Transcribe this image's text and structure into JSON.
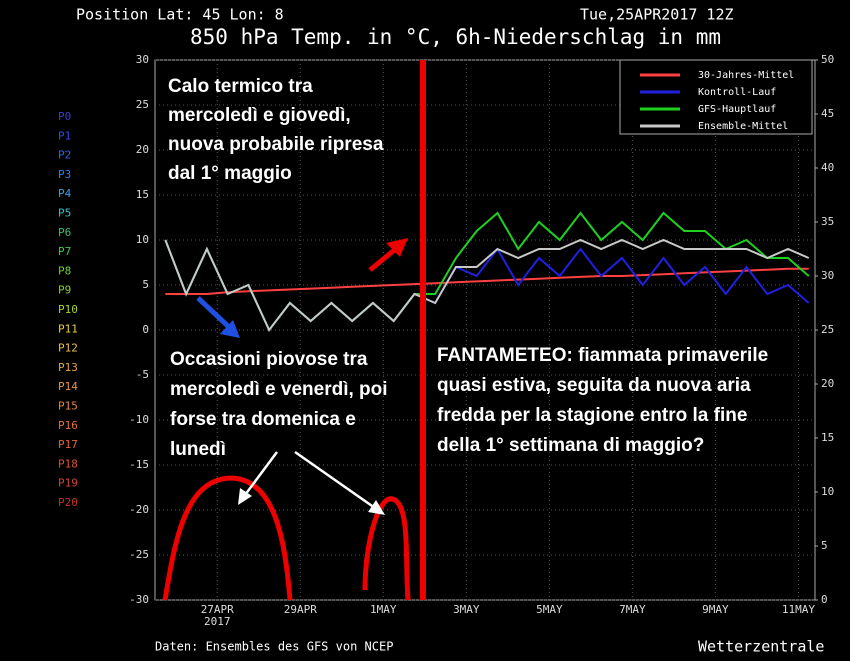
{
  "header": {
    "position": "Position  Lat: 45 Lon: 8",
    "date": "Tue,25APR2017 12Z",
    "footer": "Daten: Ensembles des GFS von NCEP",
    "brand": "Wetterzentrale"
  },
  "members": [
    {
      "name": "P0",
      "color": "#3c3cd0"
    },
    {
      "name": "P1",
      "color": "#2a4ee0"
    },
    {
      "name": "P2",
      "color": "#2a66e6"
    },
    {
      "name": "P3",
      "color": "#2a84e6"
    },
    {
      "name": "P4",
      "color": "#34a2e6"
    },
    {
      "name": "P5",
      "color": "#34c0c8"
    },
    {
      "name": "P6",
      "color": "#34c070"
    },
    {
      "name": "P7",
      "color": "#34d044"
    },
    {
      "name": "P8",
      "color": "#66d034"
    },
    {
      "name": "P9",
      "color": "#88d024"
    },
    {
      "name": "P10",
      "color": "#a8d024"
    },
    {
      "name": "P11",
      "color": "#e6d044"
    },
    {
      "name": "P12",
      "color": "#e6c044"
    },
    {
      "name": "P13",
      "color": "#e6a444"
    },
    {
      "name": "P14",
      "color": "#e69444"
    },
    {
      "name": "P15",
      "color": "#e68444"
    },
    {
      "name": "P16",
      "color": "#e67234"
    },
    {
      "name": "P17",
      "color": "#e66234"
    },
    {
      "name": "P18",
      "color": "#d45234"
    },
    {
      "name": "P19",
      "color": "#d44234"
    },
    {
      "name": "P20",
      "color": "#c43224"
    }
  ],
  "annotations": [
    {
      "lines": [
        "Calo termico tra",
        "mercoledì e giovedì,",
        "nuova probabile ripresa",
        "dal 1° maggio"
      ]
    },
    {
      "lines": [
        "Occasioni piovose tra",
        "mercoledì e venerdì, poi",
        "forse tra domenica e",
        "lunedì"
      ]
    },
    {
      "lines": [
        "FANTAMETEO: fiammata primaverile",
        "quasi estiva, seguita da nuova aria",
        "fredda per la stagione entro la fine",
        "della 1° settimana di maggio?"
      ]
    }
  ],
  "chart_data": {
    "type": "line",
    "title": "850 hPa Temp. in °C, 6h-Niederschlag in mm",
    "x_year_label": "2017",
    "grid": true,
    "x": [
      0.25,
      0.75,
      1.25,
      1.75,
      2.25,
      2.75,
      3.25,
      3.75,
      4.25,
      4.75,
      5.25,
      5.75,
      6.25,
      6.75,
      7.25,
      7.75,
      8.25,
      8.75,
      9.25,
      9.75,
      10.25,
      10.75,
      11.25,
      11.75,
      12.25,
      12.75,
      13.25,
      13.75,
      14.25,
      14.75,
      15.25,
      15.75
    ],
    "xlim": [
      0,
      15.9
    ],
    "xticks": [
      {
        "value": 1.5,
        "label": "27APR"
      },
      {
        "value": 3.5,
        "label": "29APR"
      },
      {
        "value": 5.5,
        "label": "1MAY"
      },
      {
        "value": 7.5,
        "label": "3MAY"
      },
      {
        "value": 9.5,
        "label": "5MAY"
      },
      {
        "value": 11.5,
        "label": "7MAY"
      },
      {
        "value": 13.5,
        "label": "9MAY"
      },
      {
        "value": 15.5,
        "label": "11MAY"
      }
    ],
    "ylim": [
      -30,
      30
    ],
    "yticks": [
      -30,
      -25,
      -20,
      -15,
      -10,
      -5,
      0,
      5,
      10,
      15,
      20,
      25,
      30
    ],
    "y2lim": [
      0,
      50
    ],
    "y2ticks": [
      0,
      5,
      10,
      15,
      20,
      25,
      30,
      35,
      40,
      45,
      50
    ],
    "legend": "top-right",
    "series": [
      {
        "name": "30-Jahres-Mittel",
        "color": "#ff4040",
        "values": [
          4,
          4,
          4,
          4.2,
          4.3,
          4.4,
          4.5,
          4.6,
          4.7,
          4.8,
          4.9,
          5,
          5.1,
          5.2,
          5.3,
          5.4,
          5.5,
          5.6,
          5.7,
          5.8,
          5.9,
          6,
          6,
          6.1,
          6.2,
          6.3,
          6.4,
          6.5,
          6.6,
          6.7,
          6.8,
          6.8
        ]
      },
      {
        "name": "Kontroll-Lauf",
        "color": "#2020e0",
        "values": [
          10,
          4,
          9,
          4,
          5,
          0,
          3,
          1,
          3,
          1,
          3,
          1,
          4,
          3,
          7,
          6,
          9,
          5,
          8,
          6,
          9,
          6,
          8,
          5,
          8,
          5,
          7,
          4,
          7,
          4,
          5,
          3
        ]
      },
      {
        "name": "GFS-Hauptlauf",
        "color": "#20d020",
        "values": [
          10,
          4,
          9,
          4,
          5,
          0,
          3,
          1,
          3,
          1,
          3,
          1,
          4,
          4,
          8,
          11,
          13,
          9,
          12,
          10,
          13,
          10,
          12,
          10,
          13,
          11,
          11,
          9,
          10,
          8,
          8,
          6
        ]
      },
      {
        "name": "Ensemble-Mittel",
        "color": "#c8c8c8",
        "values": [
          10,
          4,
          9,
          4,
          5,
          0,
          3,
          1,
          3,
          1,
          3,
          1,
          4,
          3,
          7,
          7,
          9,
          8,
          9,
          9,
          10,
          9,
          10,
          9,
          10,
          9,
          9,
          9,
          9,
          8,
          9,
          8
        ]
      }
    ]
  }
}
